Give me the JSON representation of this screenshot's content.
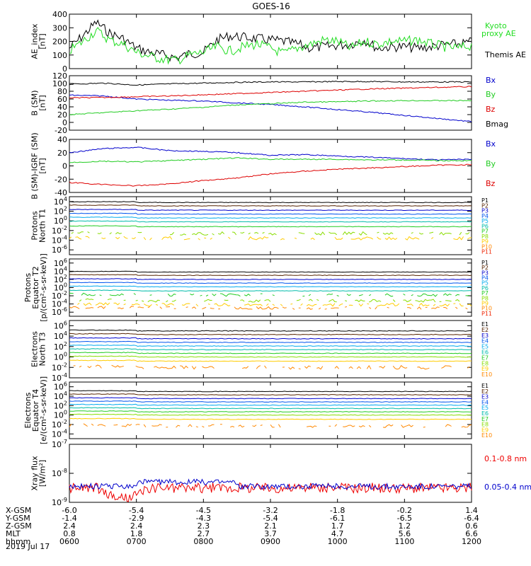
{
  "title": "GOES-16",
  "bottom_axis": {
    "rows": [
      {
        "label": "X-GSM",
        "values": [
          "-6.0",
          "-5.4",
          "-4.5",
          "-3.2",
          "-1.8",
          "-0.2",
          "1.4"
        ]
      },
      {
        "label": "Y-GSM",
        "values": [
          "-1.4",
          "-2.9",
          "-4.3",
          "-5.4",
          "-6.1",
          "-6.5",
          "-6.4"
        ]
      },
      {
        "label": "Z-GSM",
        "values": [
          "2.4",
          "2.4",
          "2.3",
          "2.1",
          "1.7",
          "1.2",
          "0.6"
        ]
      },
      {
        "label": "MLT",
        "values": [
          "0.8",
          "1.8",
          "2.7",
          "3.7",
          "4.7",
          "5.6",
          "6.6"
        ]
      },
      {
        "label": "hhmm",
        "values": [
          "0600",
          "0700",
          "0800",
          "0900",
          "1000",
          "1100",
          "1200"
        ]
      }
    ],
    "date": "2019 Jul 17"
  },
  "colors": {
    "kyoto": "#22dd22",
    "themis": "#000000",
    "bx": "#0000cc",
    "by": "#22cc22",
    "bz": "#dd0000",
    "bmag": "#000000",
    "xray_long": "#ee0000",
    "xray_short": "#0000cc",
    "channels": [
      "#000000",
      "#552200",
      "#0000cc",
      "#0055ee",
      "#00aaee",
      "#00bbaa",
      "#22cc22",
      "#88dd00",
      "#ffcc00",
      "#ff8800",
      "#ee2200",
      "#cc0000"
    ]
  },
  "chart_data": [
    {
      "type": "line",
      "panel": "ae",
      "ylabel": [
        "AE_index",
        "[nT]"
      ],
      "ylim": [
        0,
        400
      ],
      "yticks": [
        "0",
        "100",
        "200",
        "300",
        "400"
      ],
      "legend": [
        {
          "name": "Kyoto",
          "name2": "proxy AE",
          "color": "#22dd22"
        },
        {
          "name": "Themis AE",
          "color": "#000000"
        }
      ],
      "x": [
        6.0,
        6.2,
        6.4,
        6.6,
        6.8,
        7.0,
        7.2,
        7.4,
        7.6,
        7.8,
        8.0,
        8.2,
        8.4,
        8.6,
        8.8,
        9.0,
        9.2,
        9.4,
        9.6,
        9.8,
        10.0,
        10.2,
        10.4,
        10.6,
        10.8,
        11.0,
        11.2,
        11.4,
        11.6,
        11.8,
        12.0
      ],
      "series": [
        {
          "name": "Themis AE",
          "values": [
            150,
            240,
            340,
            260,
            220,
            150,
            120,
            100,
            80,
            110,
            120,
            210,
            240,
            230,
            220,
            210,
            200,
            180,
            150,
            160,
            170,
            180,
            210,
            150,
            160,
            160,
            150,
            160,
            175,
            180,
            195
          ]
        },
        {
          "name": "Kyoto",
          "values": [
            130,
            200,
            280,
            210,
            180,
            120,
            90,
            70,
            60,
            100,
            120,
            160,
            130,
            160,
            180,
            150,
            110,
            150,
            180,
            210,
            200,
            150,
            200,
            180,
            200,
            200,
            210,
            180,
            160,
            150,
            170
          ]
        }
      ]
    },
    {
      "type": "line",
      "panel": "b_sm",
      "ylabel": [
        "B (SM)",
        "[nT]"
      ],
      "ylim": [
        -20,
        120
      ],
      "yticks": [
        "-20",
        "0",
        "20",
        "40",
        "60",
        "80",
        "100",
        "120"
      ],
      "legend": [
        {
          "name": "Bx",
          "color": "#0000cc"
        },
        {
          "name": "By",
          "color": "#22cc22"
        },
        {
          "name": "Bz",
          "color": "#dd0000"
        },
        {
          "name": "Bmag",
          "color": "#000000"
        }
      ],
      "x": [
        6.0,
        6.5,
        7.0,
        7.5,
        8.0,
        8.5,
        9.0,
        9.5,
        10.0,
        10.5,
        11.0,
        11.5,
        12.0
      ],
      "series": [
        {
          "name": "Bmag",
          "values": [
            98,
            101,
            96,
            99,
            101,
            103,
            104,
            104,
            105,
            105,
            104,
            104,
            104
          ]
        },
        {
          "name": "Bx",
          "values": [
            70,
            68,
            60,
            57,
            55,
            50,
            46,
            40,
            33,
            26,
            18,
            10,
            2
          ]
        },
        {
          "name": "Bz",
          "values": [
            63,
            64,
            66,
            68,
            71,
            74,
            77,
            80,
            83,
            86,
            88,
            90,
            92
          ]
        },
        {
          "name": "By",
          "values": [
            20,
            25,
            30,
            34,
            39,
            45,
            48,
            52,
            53,
            55,
            56,
            56,
            56
          ]
        }
      ]
    },
    {
      "type": "line",
      "panel": "b_igrf",
      "ylabel": [
        "B (SM)-IGRF (SM)",
        "[nT]"
      ],
      "ylim": [
        -40,
        40
      ],
      "yticks": [
        "-40",
        "-20",
        "0",
        "20",
        "40"
      ],
      "legend": [
        {
          "name": "Bx",
          "color": "#0000cc"
        },
        {
          "name": "By",
          "color": "#22cc22"
        },
        {
          "name": "Bz",
          "color": "#dd0000"
        }
      ],
      "x": [
        6.0,
        6.5,
        7.0,
        7.5,
        8.0,
        8.5,
        9.0,
        9.5,
        10.0,
        10.5,
        11.0,
        11.5,
        12.0
      ],
      "series": [
        {
          "name": "Bx",
          "values": [
            20,
            26,
            28,
            23,
            22,
            20,
            16,
            17,
            15,
            13,
            11,
            9,
            10
          ]
        },
        {
          "name": "By",
          "values": [
            5,
            7,
            6,
            8,
            10,
            12,
            10,
            10,
            10,
            9,
            9,
            8,
            8
          ]
        },
        {
          "name": "Bz",
          "values": [
            -25,
            -28,
            -30,
            -27,
            -22,
            -18,
            -12,
            -8,
            -5,
            -3,
            -1,
            1,
            2
          ]
        }
      ]
    },
    {
      "type": "line",
      "panel": "protons_t1",
      "log": true,
      "ylabel": [
        "Protons",
        "North T1"
      ],
      "yticks_exp": [
        4,
        2,
        0,
        -2,
        -4,
        -6
      ],
      "ylim_exp": [
        -7,
        5
      ],
      "channels": [
        "P1",
        "P2",
        "P3",
        "P4",
        "P5",
        "P6",
        "P7",
        "P8",
        "P9",
        "P10",
        "P11"
      ],
      "levels_exp": [
        3.8,
        3.1,
        2.2,
        1.4,
        0.6,
        -0.2,
        -1.2,
        -2.6,
        -3.6,
        null,
        null
      ]
    },
    {
      "type": "line",
      "panel": "protons_t2",
      "log": true,
      "ylabel": [
        "Protons",
        "Equator T2",
        "[p/(cm²-s-sr-keV)]"
      ],
      "yticks_exp": [
        6,
        4,
        2,
        0,
        -2,
        -4,
        -6
      ],
      "ylim_exp": [
        -7,
        7
      ],
      "channels": [
        "P1",
        "P2",
        "P3",
        "P4",
        "P5",
        "P6",
        "P7",
        "P8",
        "P9",
        "P10",
        "P11"
      ],
      "levels_exp": [
        3.8,
        3.0,
        2.0,
        1.1,
        0.2,
        -0.8,
        -1.8,
        -3.2,
        -4.2,
        -5.0,
        null
      ]
    },
    {
      "type": "line",
      "panel": "electrons_t3",
      "log": true,
      "ylabel": [
        "Electrons",
        "North T3"
      ],
      "yticks_exp": [
        6,
        4,
        2,
        0,
        -2,
        -4
      ],
      "ylim_exp": [
        -4,
        7
      ],
      "channels": [
        "E1",
        "E2",
        "E3",
        "E4",
        "E5",
        "E6",
        "E7",
        "E8",
        "E9",
        "E10"
      ],
      "levels_exp": [
        5.0,
        4.3,
        3.5,
        2.8,
        2.1,
        1.4,
        0.7,
        0.0,
        -0.8,
        -2.0
      ]
    },
    {
      "type": "line",
      "panel": "electrons_t4",
      "log": true,
      "ylabel": [
        "Electrons",
        "Equator T4",
        "[e/(cm²-s-sr-keV)]"
      ],
      "yticks_exp": [
        6,
        4,
        2,
        0,
        -2,
        -4
      ],
      "ylim_exp": [
        -5,
        7
      ],
      "channels": [
        "E1",
        "E2",
        "E3",
        "E4",
        "E5",
        "E6",
        "E7",
        "E8",
        "E9",
        "E10"
      ],
      "levels_exp": [
        5.0,
        4.3,
        3.5,
        2.8,
        2.1,
        1.4,
        0.7,
        0.0,
        -0.9,
        -2.3
      ]
    },
    {
      "type": "line",
      "panel": "xray",
      "log": true,
      "ylabel": [
        "Xray flux",
        "[W/m²]"
      ],
      "yticks_exp": [
        -7,
        -8,
        -9
      ],
      "ylim_exp": [
        -9,
        -7
      ],
      "legend": [
        {
          "name": "0.1-0.8 nm",
          "color": "#ee0000"
        },
        {
          "name": "0.05-0.4 nm",
          "color": "#0000cc"
        }
      ],
      "levels_exp": [
        -8.5,
        -8.45
      ]
    }
  ]
}
